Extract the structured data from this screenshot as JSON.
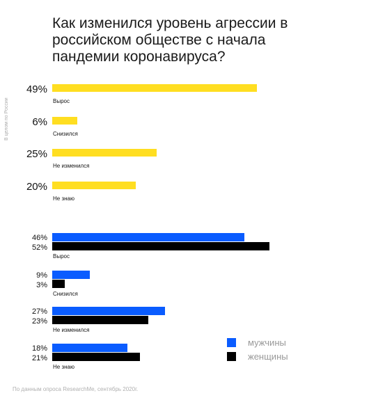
{
  "title": "Как изменился уровень агрессии в российском обществе с начала пандемии коронавируса?",
  "side_label": "В целом по России",
  "source": "По данным опроса ResearchMe, сентябрь 2020г.",
  "colors": {
    "total": "#FFDE21",
    "men": "#0A5CFF",
    "women": "#000000"
  },
  "legend": [
    {
      "label": "мужчины",
      "color": "#0A5CFF"
    },
    {
      "label": "женщины",
      "color": "#000000"
    }
  ],
  "chart_data": [
    {
      "type": "bar",
      "orientation": "horizontal",
      "categories": [
        "Вырос",
        "Снизился",
        "Не изменился",
        "Не знаю"
      ],
      "series": [
        {
          "values": [
            49,
            6,
            25,
            20
          ]
        }
      ],
      "value_labels": [
        "49%",
        "6%",
        "25%",
        "20%"
      ]
    },
    {
      "type": "bar",
      "orientation": "horizontal",
      "categories": [
        "Вырос",
        "Снизился",
        "Не изменился",
        "Не знаю"
      ],
      "series": [
        {
          "name": "мужчины",
          "values": [
            46,
            9,
            27,
            18
          ],
          "value_labels": [
            "46%",
            "9%",
            "27%",
            "18%"
          ]
        },
        {
          "name": "женщины",
          "values": [
            52,
            3,
            23,
            21
          ],
          "value_labels": [
            "52%",
            "3%",
            "23%",
            "21%"
          ]
        }
      ]
    }
  ]
}
